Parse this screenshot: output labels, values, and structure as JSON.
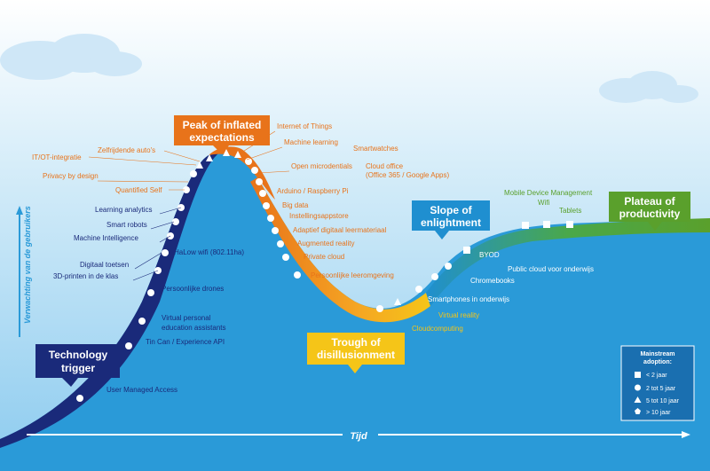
{
  "axes": {
    "y_label": "Verwachting van de gebruikers",
    "x_label": "Tijd"
  },
  "phases": {
    "technology_trigger": [
      "Technology",
      "trigger"
    ],
    "peak": [
      "Peak of inflated",
      "expectations"
    ],
    "trough": [
      "Trough of",
      "disillusionment"
    ],
    "slope": [
      "Slope of",
      "enlightment"
    ],
    "plateau": [
      "Plateau of",
      "productivity"
    ]
  },
  "technologies": {
    "trigger_side": [
      "Zelfrijdende auto's",
      "IT/OT-integratie",
      "Privacy by design",
      "Quantified Self",
      "Learning analytics",
      "Smart robots",
      "Machine Intelligence",
      "HaLow wifi (802.11ha)",
      "Digitaal toetsen",
      "3D-printen in de klas",
      "Persoonlijke drones",
      "Virtual personal",
      "education assistants",
      "Tin Can / Experience API",
      "User Managed Access"
    ],
    "downslope": [
      "Internet of Things",
      "Machine learning",
      "Smartwatches",
      "Open microdentials",
      "Cloud office",
      "(Office 365 / Google Apps)",
      "Arduino / Raspberry Pi",
      "Big data",
      "Instellingsappstore",
      "Adaptief digitaal leermateriaal",
      "Augmented reality",
      "Private cloud",
      "Persoonlijke leeromgeving"
    ],
    "trough_side": [
      "Virtual reality",
      "Cloudcomputing"
    ],
    "slope_side": [
      "BYOD",
      "Chromebooks",
      "Public cloud voor onderwijs",
      "Smartphones in onderwijs"
    ],
    "plateau_side": [
      "Mobile Device Management",
      "Wifi",
      "Tablets"
    ]
  },
  "legend": {
    "title": [
      "Mainstream",
      "adoption:"
    ],
    "items": [
      "< 2 jaar",
      "2 tot 5 jaar",
      "5 tot 10 jaar",
      "> 10 jaar"
    ]
  },
  "colors": {
    "sky": "#2a9ad8",
    "sky_light": "#a9d8f2",
    "navy": "#1a2a7a",
    "orange": "#e8731a",
    "yellow": "#f5c518",
    "green": "#5aa02c",
    "slope_blue": "#1f8fd0"
  }
}
